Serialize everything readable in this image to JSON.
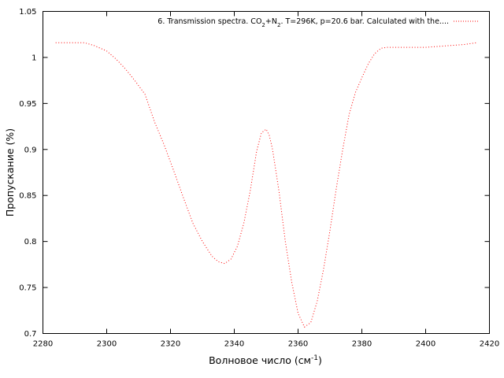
{
  "chart_data": {
    "type": "line",
    "title": "",
    "xlabel": "Волновое число (см",
    "xlabel_sup": "-1",
    "xlabel_close": ")",
    "ylabel": "Пропускание (%)",
    "xlim": [
      2280,
      2420
    ],
    "ylim": [
      0.7,
      1.05
    ],
    "x_ticks": [
      2280,
      2300,
      2320,
      2340,
      2360,
      2380,
      2400,
      2420
    ],
    "y_ticks": [
      0.7,
      0.75,
      0.8,
      0.85,
      0.9,
      0.95,
      1,
      1.05
    ],
    "x_tick_labels": [
      "2280",
      "2300",
      "2320",
      "2340",
      "2360",
      "2380",
      "2400",
      "2420"
    ],
    "y_tick_labels": [
      "0.7",
      "0.75",
      "0.8",
      "0.85",
      "0.9",
      "0.95",
      "1",
      "1.05"
    ],
    "grid": false,
    "legend_position": "top-right",
    "series": [
      {
        "name": "6. Transmission spectra. CO2+N2. T=296K, p=20.6 bar. Calculated with the....",
        "legend_parts": [
          {
            "text": "6. Transmission spectra. CO",
            "sub": false
          },
          {
            "text": "2",
            "sub": true
          },
          {
            "text": "+N",
            "sub": false
          },
          {
            "text": "2",
            "sub": true
          },
          {
            "text": ". T=296K, p=20.6 bar. Calculated with the....",
            "sub": false
          }
        ],
        "color": "#ff0000",
        "style": "dotted",
        "x": [
          2284,
          2287,
          2290,
          2293,
          2296,
          2300,
          2303,
          2306,
          2309,
          2312,
          2315,
          2318,
          2321,
          2324,
          2327,
          2330,
          2333,
          2335,
          2337,
          2339,
          2341,
          2343,
          2345,
          2347,
          2348.5,
          2350,
          2351,
          2352,
          2354,
          2356,
          2358,
          2360,
          2362,
          2364,
          2366,
          2368,
          2370,
          2372,
          2374,
          2376,
          2378,
          2380,
          2382,
          2384,
          2386,
          2388,
          2392,
          2396,
          2400,
          2404,
          2408,
          2412,
          2416
        ],
        "y": [
          1.016,
          1.016,
          1.016,
          1.016,
          1.013,
          1.007,
          0.998,
          0.987,
          0.974,
          0.96,
          0.93,
          0.905,
          0.877,
          0.848,
          0.82,
          0.8,
          0.784,
          0.778,
          0.776,
          0.781,
          0.795,
          0.82,
          0.855,
          0.898,
          0.918,
          0.922,
          0.915,
          0.9,
          0.855,
          0.8,
          0.756,
          0.722,
          0.707,
          0.712,
          0.735,
          0.77,
          0.812,
          0.858,
          0.9,
          0.938,
          0.962,
          0.978,
          0.993,
          1.004,
          1.01,
          1.011,
          1.011,
          1.011,
          1.011,
          1.012,
          1.013,
          1.014,
          1.016
        ]
      }
    ]
  }
}
